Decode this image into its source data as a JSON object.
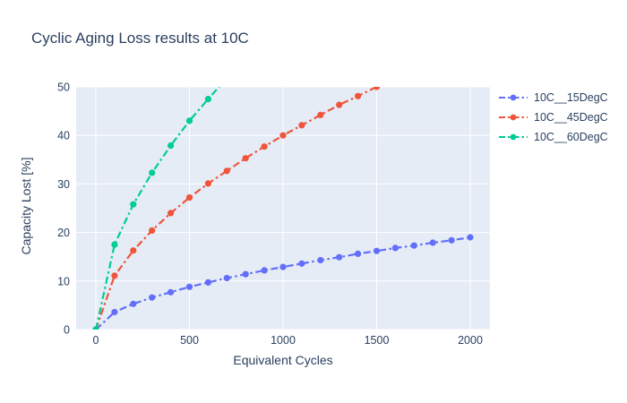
{
  "chart_data": {
    "type": "line",
    "title": "Cyclic Aging Loss results at 10C",
    "xlabel": "Equivalent Cycles",
    "ylabel": "Capacity Lost [%]",
    "xlim": [
      0,
      2000
    ],
    "ylim": [
      0,
      50
    ],
    "xticks": [
      0,
      500,
      1000,
      1500,
      2000
    ],
    "yticks": [
      0,
      10,
      20,
      30,
      40,
      50
    ],
    "grid": true,
    "legend_position": "right-top-outside",
    "line_style": "dashdot",
    "marker": "circle",
    "series": [
      {
        "name": "10C__15DegC",
        "color": "#636EFA",
        "x": [
          0,
          100,
          200,
          300,
          400,
          500,
          600,
          700,
          800,
          900,
          1000,
          1100,
          1200,
          1300,
          1400,
          1500,
          1600,
          1700,
          1800,
          1900,
          2000
        ],
        "y": [
          0,
          3.6,
          5.3,
          6.6,
          7.7,
          8.8,
          9.7,
          10.6,
          11.4,
          12.2,
          12.9,
          13.6,
          14.3,
          14.9,
          15.6,
          16.2,
          16.8,
          17.3,
          17.9,
          18.4,
          19.0
        ]
      },
      {
        "name": "10C__45DegC",
        "color": "#EF553B",
        "x": [
          0,
          100,
          200,
          300,
          400,
          500,
          600,
          700,
          800,
          900,
          1000,
          1100,
          1200,
          1300,
          1400,
          1500
        ],
        "y": [
          0,
          11.1,
          16.3,
          20.4,
          24.0,
          27.2,
          30.1,
          32.7,
          35.3,
          37.7,
          40.0,
          42.1,
          44.2,
          46.3,
          48.1,
          50.0
        ]
      },
      {
        "name": "10C__60DegC",
        "color": "#00CC96",
        "x": [
          0,
          100,
          200,
          300,
          400,
          500,
          600,
          700
        ],
        "y": [
          0,
          17.5,
          25.8,
          32.3,
          37.9,
          43.0,
          47.5,
          51.8
        ]
      }
    ],
    "colors": {
      "paper_bg": "#FFFFFF",
      "plot_bg": "#E5ECF6",
      "grid": "#FFFFFF",
      "text": "#2A3F5F"
    }
  }
}
